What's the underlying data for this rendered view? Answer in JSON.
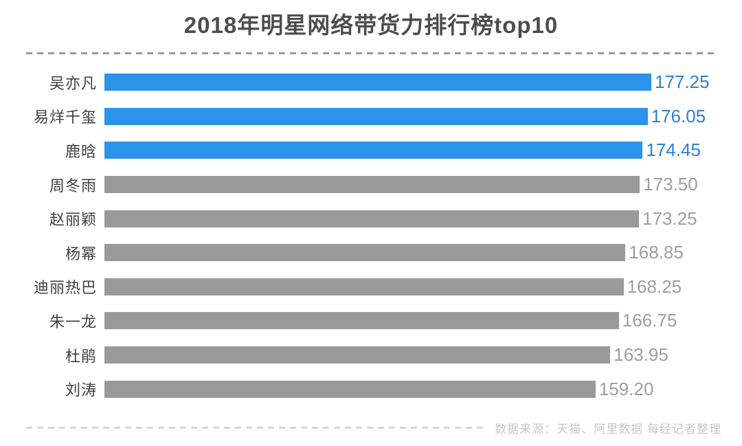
{
  "header": {
    "title": "2018年明星网络带货力排行榜top10"
  },
  "chart_data": {
    "type": "bar",
    "orientation": "horizontal",
    "title": "2018年明星网络带货力排行榜top10",
    "categories": [
      "吴亦凡",
      "易烊千玺",
      "鹿晗",
      "周冬雨",
      "赵丽颖",
      "杨幂",
      "迪丽热巴",
      "朱一龙",
      "杜鹃",
      "刘涛"
    ],
    "values": [
      177.25,
      176.05,
      174.45,
      173.5,
      173.25,
      168.85,
      168.25,
      166.75,
      163.95,
      159.2
    ],
    "value_labels": [
      "177.25",
      "176.05",
      "174.45",
      "173.50",
      "173.25",
      "168.85",
      "168.25",
      "166.75",
      "163.95",
      "159.20"
    ],
    "highlight_count": 3,
    "xlim": [
      0,
      177.25
    ],
    "axis_shown": false,
    "legend": "none",
    "grid": false,
    "colors": {
      "highlight_bar": "#2b93ea",
      "default_bar": "#9a9a9b",
      "highlight_value_text": "#2e7fd0",
      "default_value_text": "#9e9e9e"
    },
    "source_note": "数据来源：天猫、阿里数据  每经记者整理"
  },
  "footer": {
    "source_text": "数据来源：天猫、阿里数据  每经记者整理"
  }
}
